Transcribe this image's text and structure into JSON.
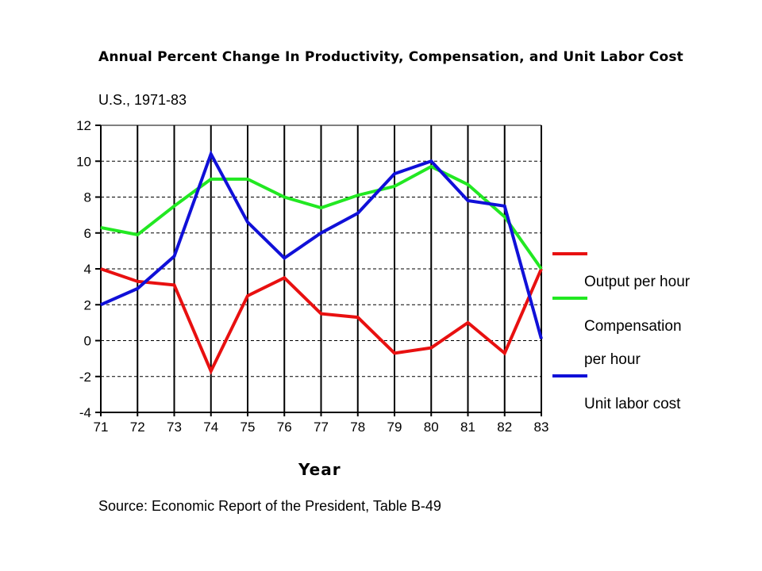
{
  "chart_data": {
    "type": "line",
    "title": "Annual Percent Change In Productivity, Compensation, and Unit Labor Cost",
    "subtitle": "U.S., 1971-83",
    "xlabel": "Year",
    "ylabel": "",
    "source": "Source: Economic Report of the President, Table B-49",
    "categories": [
      "71",
      "72",
      "73",
      "74",
      "75",
      "76",
      "77",
      "78",
      "79",
      "80",
      "81",
      "82",
      "83"
    ],
    "ylim": [
      -4,
      12
    ],
    "yticks": [
      12,
      10,
      8,
      6,
      4,
      2,
      0,
      -2,
      -4
    ],
    "grid": "horizontal dashed, vertical solid",
    "legend_position": "right",
    "series": [
      {
        "name": "Output per hour",
        "color": "#e81010",
        "values": [
          4.0,
          3.3,
          3.1,
          -1.7,
          2.5,
          3.5,
          1.5,
          1.3,
          -0.7,
          -0.4,
          1.0,
          -0.7,
          4.0
        ]
      },
      {
        "name": "Compensation per hour",
        "color": "#22e822",
        "values": [
          6.3,
          5.9,
          7.5,
          9.0,
          9.0,
          8.0,
          7.4,
          8.1,
          8.6,
          9.7,
          8.7,
          6.9,
          4.0
        ]
      },
      {
        "name": "Unit labor cost",
        "color": "#1010d8",
        "values": [
          2.0,
          2.9,
          4.7,
          10.4,
          6.6,
          4.6,
          6.0,
          7.1,
          9.3,
          10.0,
          7.8,
          7.5,
          0.1
        ]
      }
    ]
  },
  "legend": {
    "item1": "Output per hour",
    "item2_line1": "Compensation",
    "item2_line2": "per hour",
    "item3": "Unit labor cost"
  }
}
